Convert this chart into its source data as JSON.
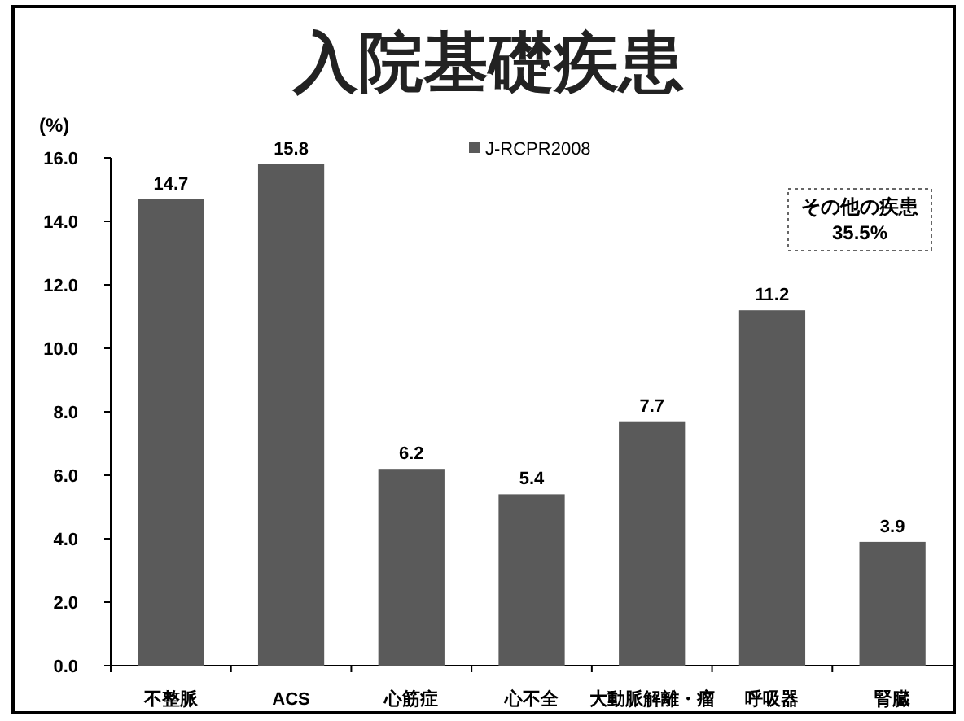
{
  "chart_data": {
    "type": "bar",
    "title": "入院基礎疾患",
    "ylabel": "(%)",
    "categories": [
      "不整脈",
      "ACS",
      "心筋症",
      "心不全",
      "大動脈解離・瘤",
      "呼吸器",
      "腎臓"
    ],
    "series": [
      {
        "name": "J-RCPR2008",
        "color": "#5a5a5a",
        "values": [
          14.7,
          15.8,
          6.2,
          5.4,
          7.7,
          11.2,
          3.9
        ]
      }
    ],
    "ylim": [
      0,
      16
    ],
    "yticks": [
      {
        "value": 0,
        "label": "0.0"
      },
      {
        "value": 2,
        "label": "2.0"
      },
      {
        "value": 4,
        "label": "4.0"
      },
      {
        "value": 6,
        "label": "6.0"
      },
      {
        "value": 8,
        "label": "8.0"
      },
      {
        "value": 10,
        "label": "10.0"
      },
      {
        "value": 12,
        "label": "12.0"
      },
      {
        "value": 14,
        "label": "14.0"
      },
      {
        "value": 16,
        "label": "16.0"
      }
    ],
    "data_labels": true,
    "legend": "top",
    "grid": false,
    "annotations": [
      "その他の疾患",
      "35.5%"
    ]
  }
}
